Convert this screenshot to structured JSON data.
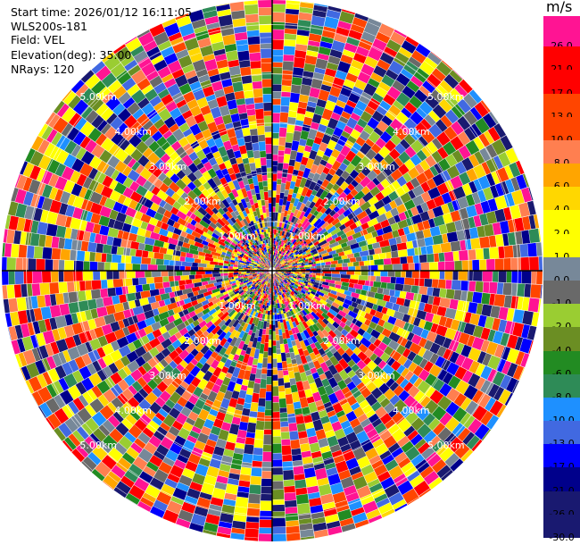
{
  "header": {
    "start_time": "Start time: 2026/01/12 16:11:05",
    "station": "WLS200s-181",
    "field": "Field: VEL",
    "elevation": "Elevation(deg): 35.00",
    "nrays": "NRays: 120"
  },
  "colorbar": {
    "unit": "m/s",
    "levels": [
      {
        "label": "26.0",
        "color": "#ff1493"
      },
      {
        "label": "21.0",
        "color": "#ff0000"
      },
      {
        "label": "17.0",
        "color": "#ff0000"
      },
      {
        "label": "13.0",
        "color": "#ff4500"
      },
      {
        "label": "10.0",
        "color": "#ff4500"
      },
      {
        "label": "8.0",
        "color": "#ff7f50"
      },
      {
        "label": "6.0",
        "color": "#ffa500"
      },
      {
        "label": "4.0",
        "color": "#ffd700"
      },
      {
        "label": "2.0",
        "color": "#ffff00"
      },
      {
        "label": "1.0",
        "color": "#ffff00"
      },
      {
        "label": "0.0",
        "color": "#778899"
      },
      {
        "label": "-1.0",
        "color": "#696969"
      },
      {
        "label": "-2.0",
        "color": "#9acd32"
      },
      {
        "label": "-4.0",
        "color": "#6b8e23"
      },
      {
        "label": "-6.0",
        "color": "#228b22"
      },
      {
        "label": "-8.0",
        "color": "#2e8b57"
      },
      {
        "label": "-10.0",
        "color": "#1e90ff"
      },
      {
        "label": "-13.0",
        "color": "#4169e1"
      },
      {
        "label": "-17.0",
        "color": "#0000ff"
      },
      {
        "label": "-21.0",
        "color": "#00008b"
      },
      {
        "label": "-26.0",
        "color": "#191970"
      },
      {
        "label": "-30.0",
        "color": "#191970"
      }
    ],
    "top_cap_color": "#ff1493"
  },
  "chart_data": {
    "type": "heatmap",
    "projection": "polar (PPI)",
    "field": "VEL",
    "unit": "m/s",
    "nrays": 120,
    "value_range": [
      -30,
      30
    ],
    "range_ring_labels_km": [
      "1.00km",
      "2.00km",
      "3.00km",
      "4.00km",
      "5.00km"
    ],
    "range_rings_km": [
      1,
      2,
      3,
      4,
      5
    ],
    "max_range_km": 5.5,
    "note_values": "gate values depicted as multicolor noisy cells; values span full colorbar range"
  }
}
